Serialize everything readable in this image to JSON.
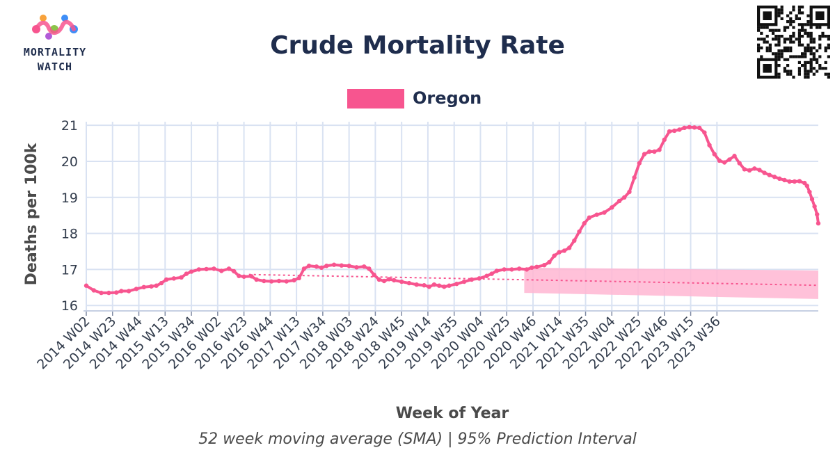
{
  "header": {
    "logo_line1": "MORTALITY",
    "logo_line2": "WATCH"
  },
  "chart_data": {
    "type": "line",
    "title": "Crude Mortality Rate",
    "subtitle": "52 week moving average (SMA) | 95% Prediction Interval",
    "xlabel": "Week of Year",
    "ylabel": "Deaths per 100k",
    "ylim": [
      15.85,
      21.1
    ],
    "y_ticks": [
      16,
      17,
      18,
      19,
      20,
      21
    ],
    "x_ticks": [
      "2014 W02",
      "2014 W23",
      "2014 W44",
      "2015 W13",
      "2015 W34",
      "2016 W02",
      "2016 W23",
      "2016 W44",
      "2017 W13",
      "2017 W34",
      "2018 W03",
      "2018 W24",
      "2018 W45",
      "2019 W14",
      "2019 W35",
      "2020 W04",
      "2020 W25",
      "2020 W46",
      "2021 W14",
      "2021 W35",
      "2022 W04",
      "2022 W25",
      "2022 W46",
      "2023 W15",
      "2023 W36"
    ],
    "tick_step_weeks": 21,
    "grid": true,
    "legend": {
      "position": "top-center"
    },
    "series": [
      {
        "name": "Oregon",
        "color": "#f7558f",
        "points": [
          [
            0,
            16.55
          ],
          [
            6,
            16.42
          ],
          [
            12,
            16.35
          ],
          [
            18,
            16.35
          ],
          [
            24,
            16.36
          ],
          [
            28,
            16.4
          ],
          [
            34,
            16.4
          ],
          [
            40,
            16.46
          ],
          [
            46,
            16.51
          ],
          [
            52,
            16.53
          ],
          [
            56,
            16.55
          ],
          [
            60,
            16.62
          ],
          [
            64,
            16.72
          ],
          [
            70,
            16.75
          ],
          [
            76,
            16.78
          ],
          [
            80,
            16.88
          ],
          [
            84,
            16.94
          ],
          [
            90,
            17.0
          ],
          [
            96,
            17.01
          ],
          [
            102,
            17.02
          ],
          [
            108,
            16.96
          ],
          [
            114,
            17.02
          ],
          [
            118,
            16.95
          ],
          [
            122,
            16.82
          ],
          [
            126,
            16.8
          ],
          [
            132,
            16.81
          ],
          [
            136,
            16.72
          ],
          [
            142,
            16.68
          ],
          [
            148,
            16.67
          ],
          [
            154,
            16.68
          ],
          [
            160,
            16.67
          ],
          [
            166,
            16.7
          ],
          [
            170,
            16.76
          ],
          [
            174,
            17.02
          ],
          [
            178,
            17.1
          ],
          [
            184,
            17.08
          ],
          [
            188,
            17.05
          ],
          [
            192,
            17.1
          ],
          [
            198,
            17.13
          ],
          [
            204,
            17.11
          ],
          [
            210,
            17.1
          ],
          [
            216,
            17.06
          ],
          [
            222,
            17.08
          ],
          [
            226,
            17.02
          ],
          [
            230,
            16.85
          ],
          [
            234,
            16.72
          ],
          [
            238,
            16.68
          ],
          [
            242,
            16.73
          ],
          [
            246,
            16.7
          ],
          [
            252,
            16.66
          ],
          [
            258,
            16.62
          ],
          [
            264,
            16.58
          ],
          [
            270,
            16.56
          ],
          [
            274,
            16.52
          ],
          [
            278,
            16.58
          ],
          [
            282,
            16.55
          ],
          [
            286,
            16.52
          ],
          [
            290,
            16.55
          ],
          [
            296,
            16.6
          ],
          [
            302,
            16.66
          ],
          [
            308,
            16.72
          ],
          [
            314,
            16.75
          ],
          [
            320,
            16.82
          ],
          [
            324,
            16.88
          ],
          [
            328,
            16.96
          ],
          [
            334,
            17.0
          ],
          [
            340,
            17.0
          ],
          [
            346,
            17.02
          ],
          [
            352,
            17.0
          ],
          [
            356,
            17.05
          ],
          [
            360,
            17.07
          ],
          [
            366,
            17.12
          ],
          [
            370,
            17.2
          ],
          [
            374,
            17.38
          ],
          [
            378,
            17.48
          ],
          [
            382,
            17.52
          ],
          [
            386,
            17.6
          ],
          [
            390,
            17.8
          ],
          [
            394,
            18.05
          ],
          [
            398,
            18.28
          ],
          [
            402,
            18.44
          ],
          [
            408,
            18.52
          ],
          [
            414,
            18.58
          ],
          [
            420,
            18.72
          ],
          [
            426,
            18.9
          ],
          [
            430,
            19.0
          ],
          [
            434,
            19.15
          ],
          [
            438,
            19.55
          ],
          [
            442,
            19.95
          ],
          [
            446,
            20.2
          ],
          [
            450,
            20.27
          ],
          [
            454,
            20.27
          ],
          [
            458,
            20.32
          ],
          [
            462,
            20.6
          ],
          [
            466,
            20.83
          ],
          [
            470,
            20.85
          ],
          [
            474,
            20.88
          ],
          [
            478,
            20.93
          ],
          [
            482,
            20.95
          ],
          [
            486,
            20.94
          ],
          [
            490,
            20.93
          ],
          [
            494,
            20.8
          ],
          [
            498,
            20.45
          ],
          [
            502,
            20.2
          ],
          [
            506,
            20.02
          ],
          [
            510,
            19.97
          ],
          [
            514,
            20.05
          ],
          [
            518,
            20.15
          ],
          [
            522,
            19.95
          ],
          [
            526,
            19.78
          ],
          [
            530,
            19.75
          ],
          [
            534,
            19.8
          ],
          [
            538,
            19.76
          ],
          [
            542,
            19.68
          ],
          [
            546,
            19.62
          ],
          [
            550,
            19.57
          ],
          [
            554,
            19.52
          ],
          [
            558,
            19.48
          ],
          [
            562,
            19.44
          ],
          [
            566,
            19.44
          ],
          [
            570,
            19.45
          ],
          [
            574,
            19.4
          ],
          [
            576,
            19.32
          ],
          [
            578,
            19.15
          ],
          [
            580,
            18.95
          ],
          [
            582,
            18.75
          ],
          [
            584,
            18.53
          ],
          [
            585,
            18.28
          ]
        ]
      }
    ],
    "trend": {
      "color": "#f7558f",
      "points": [
        [
          130,
          16.86
        ],
        [
          585,
          16.56
        ]
      ]
    },
    "prediction_interval": {
      "color": "#ffb6d2",
      "x_range": [
        350,
        585
      ],
      "upper": [
        17.05,
        16.97
      ],
      "lower": [
        16.35,
        16.18
      ]
    }
  }
}
